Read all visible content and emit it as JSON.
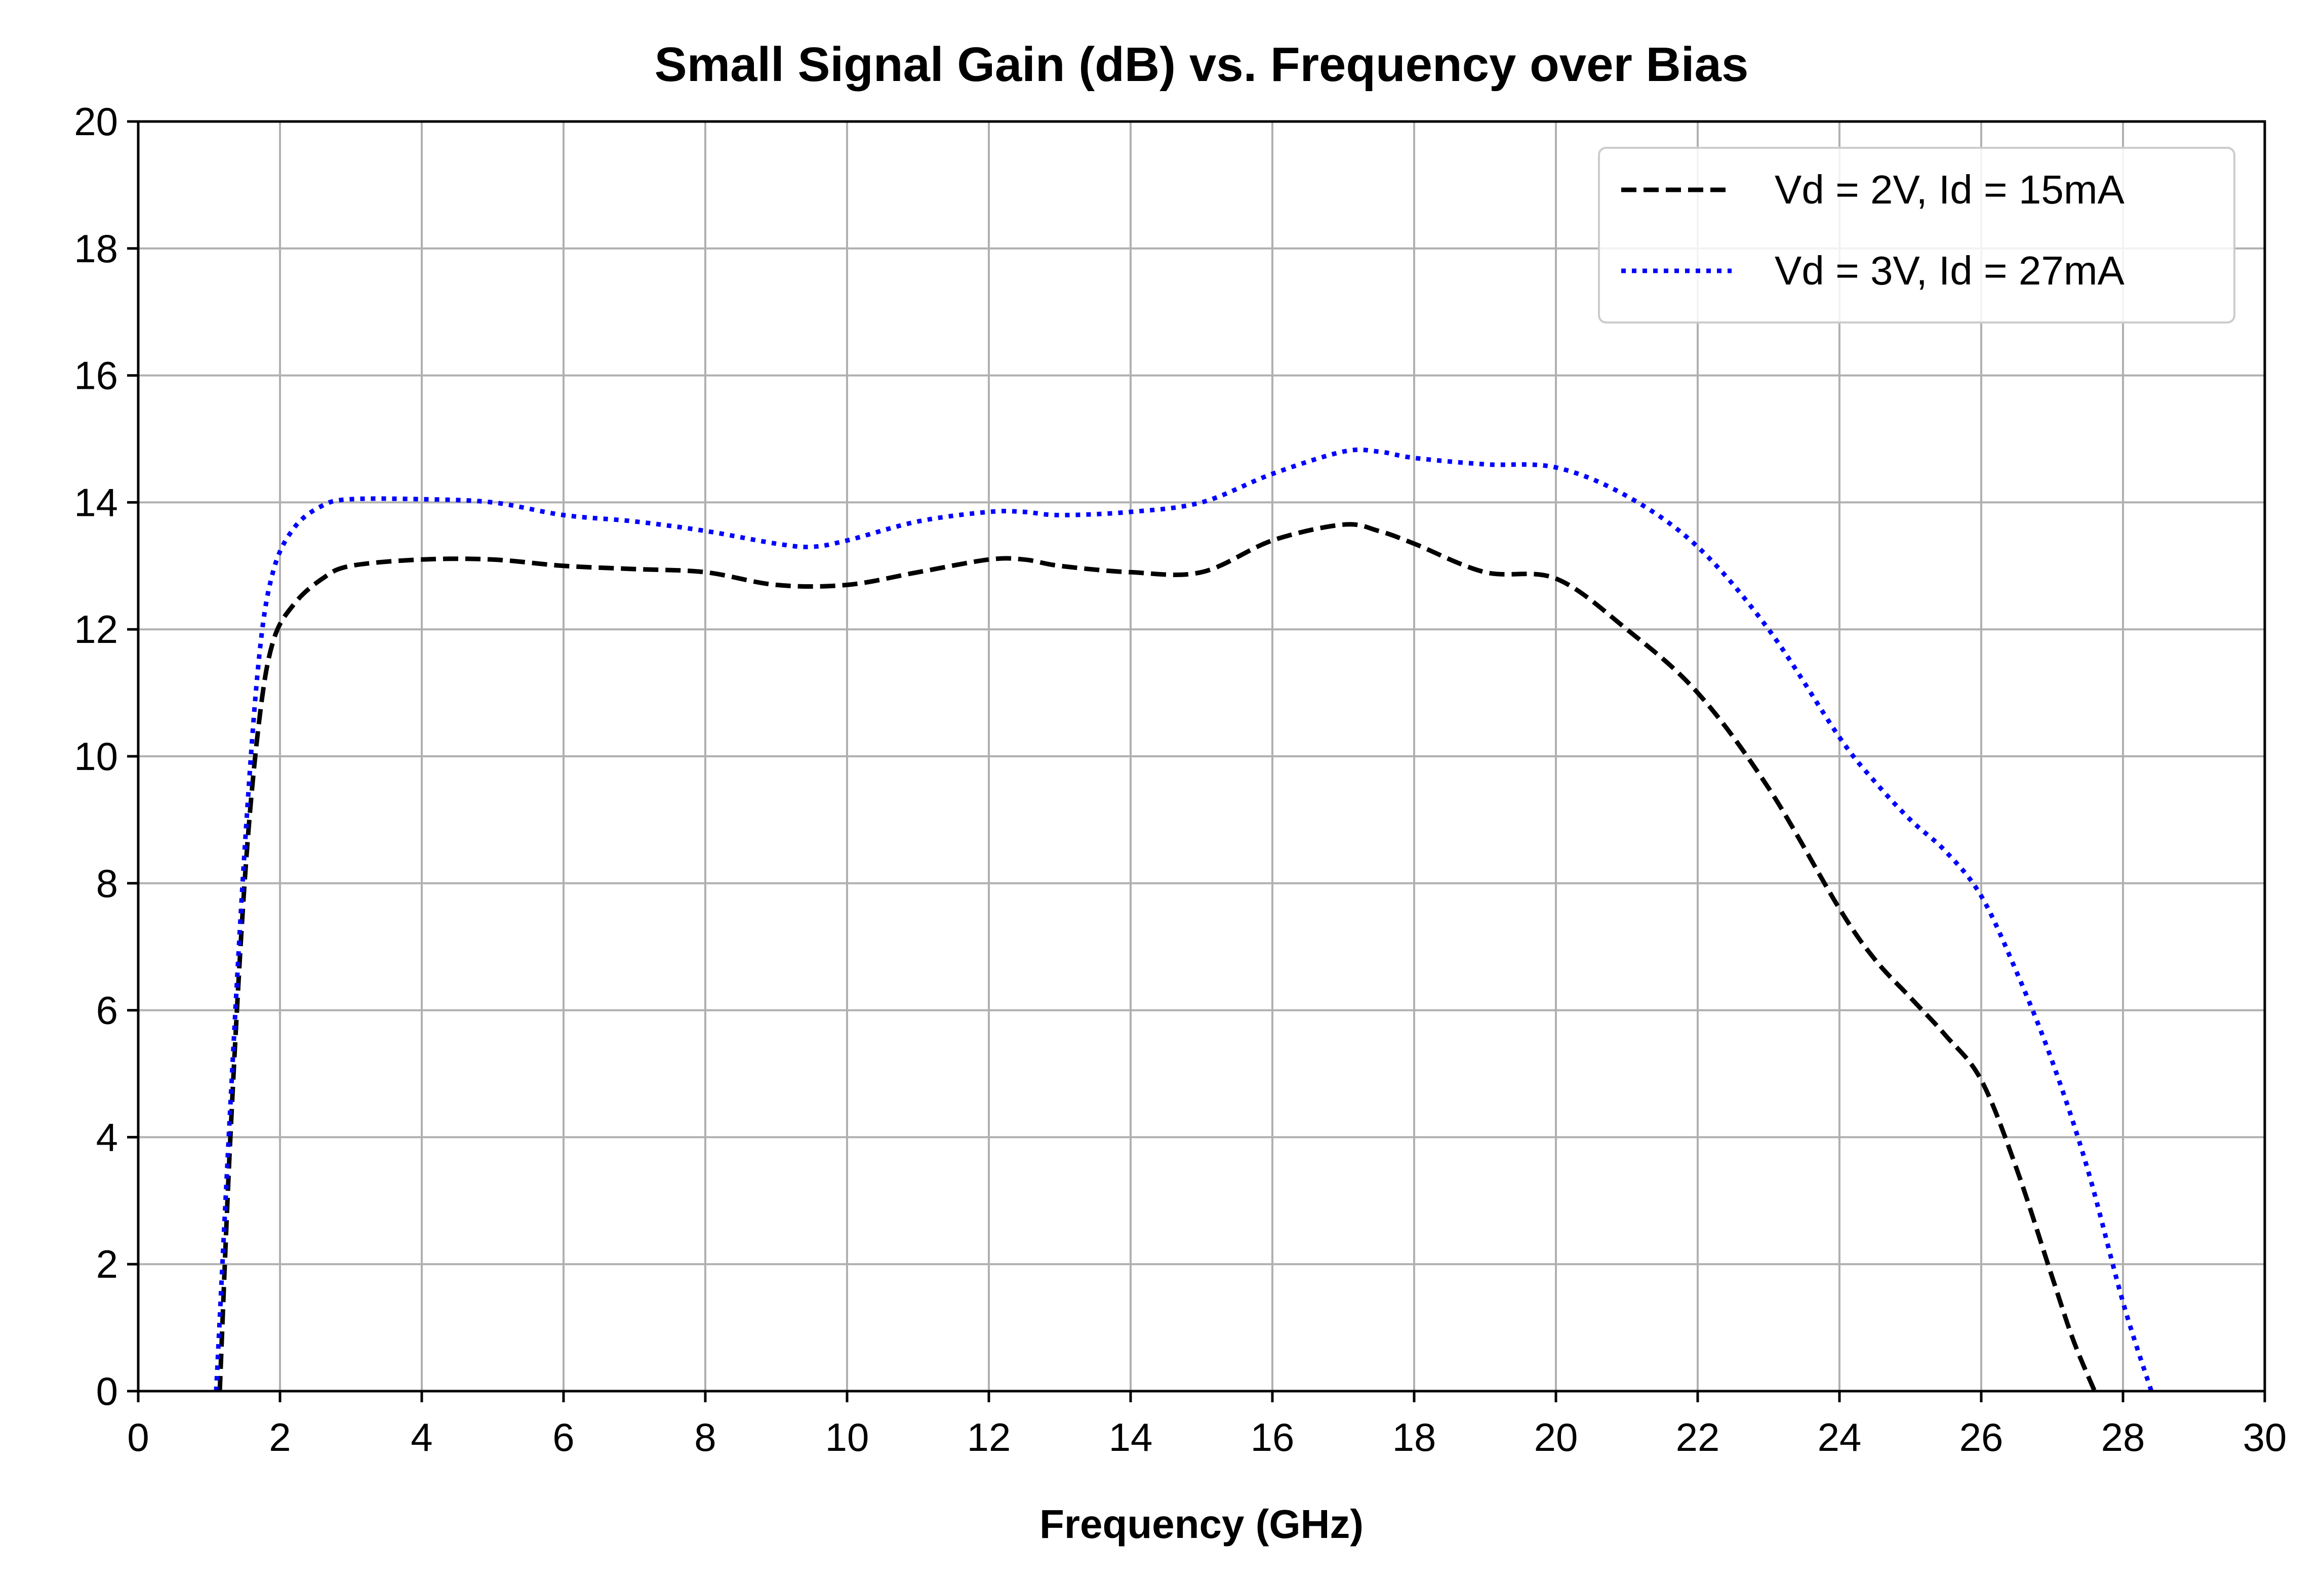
{
  "chart_data": {
    "type": "line",
    "title": "Small Signal Gain (dB) vs. Frequency over Bias",
    "xlabel": "Frequency (GHz)",
    "ylabel": "",
    "xlim": [
      0,
      30
    ],
    "ylim": [
      0,
      20
    ],
    "xticks": [
      "0",
      "2",
      "4",
      "6",
      "8",
      "10",
      "12",
      "14",
      "16",
      "18",
      "20",
      "22",
      "24",
      "26",
      "28",
      "30"
    ],
    "yticks": [
      "0",
      "2",
      "4",
      "6",
      "8",
      "10",
      "12",
      "14",
      "16",
      "18",
      "20"
    ],
    "grid": true,
    "legend_position": "top-right",
    "series": [
      {
        "name": "Vd = 2V, Id = 15mA",
        "color": "#000000",
        "style": "dashed",
        "x": [
          1.15,
          1.3,
          1.5,
          1.7,
          1.9,
          2.2,
          2.6,
          3.0,
          4.0,
          5.0,
          6.0,
          7.0,
          8.0,
          9.0,
          10.0,
          11.0,
          12.0,
          12.5,
          13.0,
          14.0,
          15.0,
          16.0,
          17.0,
          17.5,
          18.0,
          19.0,
          20.0,
          21.0,
          22.0,
          23.0,
          24.0,
          24.5,
          25.0,
          25.5,
          26.0,
          26.5,
          27.0,
          27.3,
          27.6
        ],
        "y": [
          0.0,
          4.0,
          8.0,
          10.5,
          11.8,
          12.4,
          12.8,
          13.0,
          13.1,
          13.1,
          13.0,
          12.95,
          12.9,
          12.7,
          12.7,
          12.9,
          13.1,
          13.1,
          13.0,
          12.9,
          12.9,
          13.4,
          13.65,
          13.55,
          13.35,
          12.9,
          12.8,
          12.0,
          11.0,
          9.5,
          7.6,
          6.8,
          6.2,
          5.6,
          4.9,
          3.5,
          1.8,
          0.8,
          0.0
        ]
      },
      {
        "name": "Vd = 3V, Id = 27mA",
        "color": "#0000ff",
        "style": "dotted",
        "x": [
          1.1,
          1.3,
          1.5,
          1.7,
          1.9,
          2.2,
          2.6,
          3.0,
          4.0,
          5.0,
          6.0,
          7.0,
          8.0,
          9.0,
          9.5,
          10.0,
          11.0,
          12.0,
          12.5,
          13.0,
          14.0,
          15.0,
          16.0,
          17.0,
          17.5,
          18.0,
          19.0,
          20.0,
          21.0,
          22.0,
          23.0,
          24.0,
          24.5,
          25.0,
          25.5,
          26.0,
          26.5,
          27.0,
          27.5,
          28.0,
          28.4
        ],
        "y": [
          0.0,
          4.5,
          8.5,
          11.5,
          12.9,
          13.6,
          13.95,
          14.05,
          14.05,
          14.0,
          13.8,
          13.7,
          13.55,
          13.35,
          13.3,
          13.4,
          13.7,
          13.85,
          13.85,
          13.8,
          13.85,
          14.0,
          14.45,
          14.8,
          14.8,
          14.7,
          14.6,
          14.55,
          14.1,
          13.3,
          12.0,
          10.3,
          9.6,
          9.0,
          8.5,
          7.8,
          6.6,
          5.2,
          3.5,
          1.4,
          0.0
        ]
      }
    ]
  }
}
